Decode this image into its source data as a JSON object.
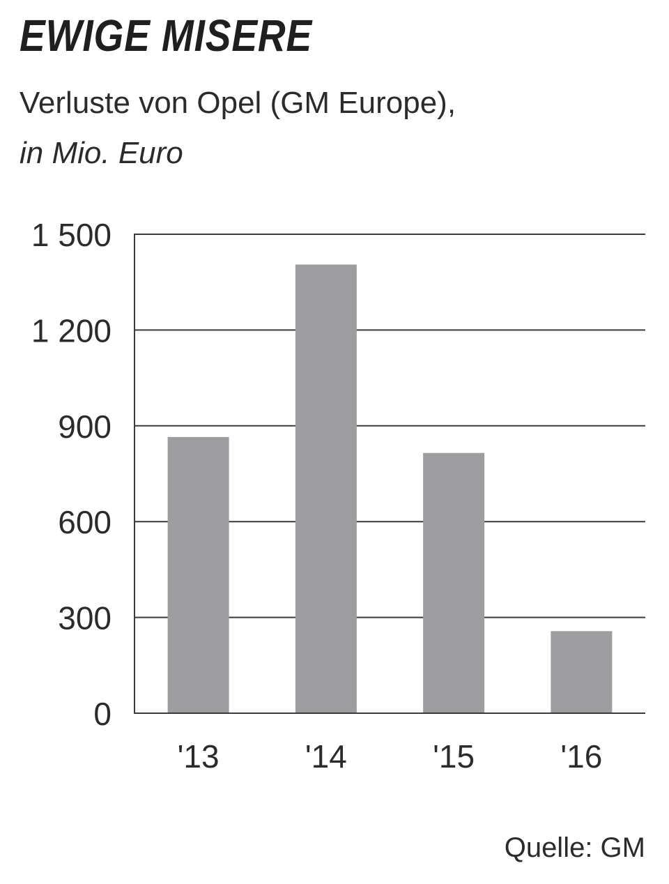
{
  "chart_data": {
    "type": "bar",
    "title": "EWIGE MISERE",
    "subtitle_line1": "Verluste von Opel (GM Europe),",
    "subtitle_line2": "in Mio. Euro",
    "categories": [
      "'13",
      "'14",
      "'15",
      "'16"
    ],
    "values": [
      865,
      1405,
      815,
      257
    ],
    "ylim": [
      0,
      1500
    ],
    "yticks": [
      0,
      300,
      600,
      900,
      1200,
      1500
    ],
    "ytick_labels": [
      "0",
      "300",
      "600",
      "900",
      "1 200",
      "1 500"
    ],
    "xlabel": "",
    "ylabel": "",
    "grid": true,
    "bar_color": "#9d9d9f",
    "source": "Quelle: GM"
  }
}
